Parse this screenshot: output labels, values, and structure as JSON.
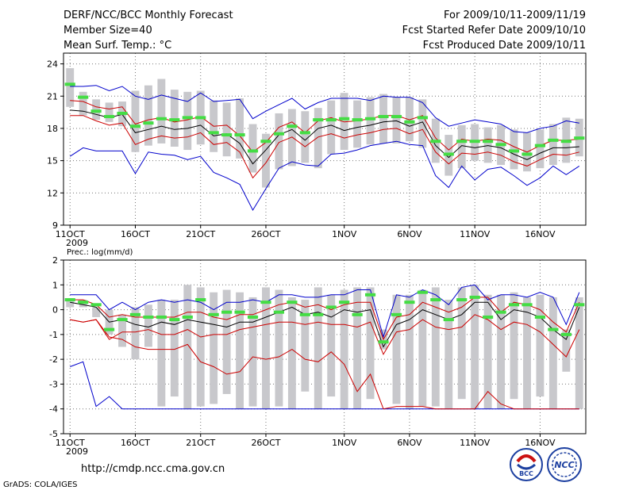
{
  "header": {
    "title": "DERF/NCC/BCC Monthly Forecast",
    "member_size": "Member Size=40",
    "variable": "Mean Surf. Temp.: °C",
    "period": "For 2009/10/11-2009/11/19",
    "fcst_started": "Fcst Started Refer Date 2009/10/10",
    "fcst_produced": "Fcst Produced Date 2009/10/11"
  },
  "footer": {
    "url": "http://cmdp.ncc.cma.gov.cn",
    "grads": "GrADS: COLA/IGES",
    "logo_bcc_text": "BCC",
    "logo_ncc_text": "NCC"
  },
  "colors": {
    "spread_bar": "#c8c8cc",
    "mean": "#000000",
    "inner": "#cc0000",
    "outer": "#0000cc",
    "obs": "#44dd44",
    "grid": "#777777"
  },
  "chart_data": [
    {
      "type": "line",
      "title": "Mean Surf. Temp.: °C",
      "year_label": "2009",
      "ylim": [
        9,
        25
      ],
      "yticks": [
        9,
        12,
        15,
        18,
        21,
        24
      ],
      "xlim": [
        -0.5,
        39.5
      ],
      "xticks": [
        {
          "x": 0,
          "label": "11OCT"
        },
        {
          "x": 5,
          "label": "16OCT"
        },
        {
          "x": 10,
          "label": "21OCT"
        },
        {
          "x": 15,
          "label": "26OCT"
        },
        {
          "x": 21,
          "label": "1NOV"
        },
        {
          "x": 26,
          "label": "6NOV"
        },
        {
          "x": 31,
          "label": "11NOV"
        },
        {
          "x": 36,
          "label": "16NOV"
        }
      ],
      "bar_low": [
        20.0,
        19.2,
        18.8,
        18.6,
        18.2,
        15.8,
        16.4,
        16.6,
        16.3,
        16.0,
        16.5,
        15.8,
        15.4,
        15.2,
        13.9,
        12.5,
        14.2,
        14.5,
        14.8,
        14.3,
        15.6,
        16.0,
        16.2,
        16.5,
        16.6,
        16.6,
        16.8,
        16.2,
        14.8,
        13.6,
        14.3,
        15.0,
        14.8,
        14.6,
        14.2,
        14.0,
        14.3,
        14.6,
        14.8,
        15.4
      ],
      "bar_high": [
        23.6,
        21.4,
        20.7,
        20.4,
        20.5,
        21.5,
        22.0,
        22.6,
        21.6,
        21.4,
        21.5,
        20.6,
        20.4,
        20.8,
        18.4,
        17.5,
        19.4,
        19.8,
        19.6,
        19.9,
        20.6,
        21.3,
        20.6,
        20.9,
        21.2,
        20.9,
        20.9,
        20.7,
        18.9,
        17.4,
        18.3,
        18.4,
        18.1,
        18.3,
        17.9,
        17.6,
        17.9,
        18.4,
        19.0,
        18.9
      ],
      "mean": [
        19.7,
        19.6,
        19.3,
        19.0,
        19.3,
        17.6,
        17.9,
        18.2,
        17.9,
        18.0,
        18.3,
        17.3,
        17.5,
        16.6,
        14.7,
        16.0,
        17.4,
        17.9,
        16.9,
        18.0,
        18.3,
        17.8,
        18.1,
        18.3,
        18.6,
        18.7,
        18.2,
        18.6,
        16.4,
        15.3,
        16.4,
        16.2,
        16.4,
        16.2,
        15.6,
        15.1,
        15.7,
        16.2,
        16.2,
        16.3
      ],
      "inner_upper": [
        20.6,
        20.5,
        20.0,
        19.8,
        20.0,
        18.4,
        18.8,
        19.0,
        18.6,
        18.8,
        19.1,
        18.2,
        18.3,
        17.3,
        15.8,
        16.7,
        18.1,
        18.6,
        17.6,
        18.7,
        19.0,
        18.6,
        18.7,
        18.9,
        19.2,
        19.2,
        18.8,
        19.2,
        17.1,
        16.0,
        17.0,
        16.8,
        17.0,
        16.9,
        16.3,
        15.8,
        16.4,
        16.9,
        16.9,
        17.0
      ],
      "inner_lower": [
        19.2,
        19.2,
        18.7,
        18.3,
        18.5,
        16.5,
        17.0,
        17.3,
        17.1,
        17.2,
        17.6,
        16.5,
        16.7,
        15.8,
        13.4,
        14.8,
        16.7,
        17.2,
        16.3,
        17.2,
        17.5,
        17.1,
        17.4,
        17.6,
        17.9,
        18.0,
        17.5,
        17.9,
        15.8,
        14.7,
        15.7,
        15.6,
        15.8,
        15.5,
        14.9,
        14.5,
        15.1,
        15.6,
        15.5,
        15.8
      ],
      "outer_upper": [
        21.9,
        21.9,
        22.0,
        21.5,
        21.9,
        21.0,
        20.7,
        21.1,
        20.8,
        20.5,
        21.3,
        20.5,
        20.6,
        20.7,
        18.9,
        19.6,
        20.2,
        20.8,
        19.8,
        20.4,
        20.8,
        20.8,
        20.8,
        20.6,
        21.0,
        20.9,
        20.9,
        20.4,
        19.0,
        18.2,
        18.5,
        18.8,
        18.6,
        18.4,
        17.7,
        17.6,
        18.0,
        18.2,
        18.7,
        18.5
      ],
      "outer_lower": [
        15.4,
        16.2,
        15.9,
        15.9,
        15.9,
        13.8,
        15.8,
        15.6,
        15.5,
        15.1,
        15.4,
        13.9,
        13.4,
        12.8,
        10.4,
        12.4,
        14.3,
        14.9,
        14.6,
        14.5,
        15.6,
        15.7,
        16.0,
        16.4,
        16.6,
        16.8,
        16.5,
        16.4,
        13.6,
        12.5,
        14.5,
        13.2,
        14.2,
        14.4,
        13.6,
        12.7,
        13.4,
        14.5,
        13.7,
        14.5
      ],
      "observed": [
        22.1,
        20.9,
        19.6,
        19.1,
        19.4,
        18.2,
        18.5,
        18.9,
        18.8,
        19.0,
        19.0,
        17.6,
        17.4,
        17.4,
        15.9,
        16.8,
        17.5,
        18.2,
        17.6,
        18.8,
        18.8,
        18.9,
        18.8,
        18.9,
        19.1,
        19.1,
        18.6,
        19.0,
        16.8,
        15.6,
        16.8,
        16.8,
        16.8,
        16.5,
        15.9,
        15.6,
        16.4,
        16.9,
        16.8,
        17.1
      ]
    },
    {
      "type": "line",
      "title": "Prec.: log(mm/d)",
      "year_label": "2009",
      "ylim": [
        -5,
        2
      ],
      "yticks": [
        -5,
        -4,
        -3,
        -2,
        -1,
        0,
        1,
        2
      ],
      "xlim": [
        -0.5,
        39.5
      ],
      "xticks": [
        {
          "x": 0,
          "label": "11OCT"
        },
        {
          "x": 5,
          "label": "16OCT"
        },
        {
          "x": 10,
          "label": "21OCT"
        },
        {
          "x": 15,
          "label": "26OCT"
        },
        {
          "x": 21,
          "label": "1NOV"
        },
        {
          "x": 26,
          "label": "6NOV"
        },
        {
          "x": 31,
          "label": "11NOV"
        },
        {
          "x": 36,
          "label": "16NOV"
        }
      ],
      "bar_low": [
        0.1,
        0.1,
        -0.3,
        -1.0,
        -1.5,
        -2.0,
        -1.5,
        -3.9,
        -3.5,
        -4.0,
        -3.9,
        -3.8,
        -3.4,
        -4.0,
        -3.9,
        -4.0,
        -3.9,
        -4.0,
        -3.3,
        -4.0,
        -3.5,
        -4.0,
        -4.0,
        -3.6,
        -1.6,
        -3.8,
        -4.0,
        -3.9,
        -3.9,
        -4.0,
        -3.6,
        -4.0,
        -4.0,
        -4.0,
        -3.6,
        -4.0,
        -3.5,
        -4.0,
        -2.5,
        -4.0
      ],
      "bar_high": [
        0.4,
        0.4,
        0.1,
        0.0,
        -0.2,
        0.1,
        0.2,
        0.4,
        0.4,
        1.0,
        0.9,
        0.7,
        0.8,
        0.7,
        0.5,
        0.9,
        0.8,
        0.5,
        0.4,
        0.9,
        0.6,
        0.8,
        0.9,
        0.9,
        -0.8,
        0.6,
        0.6,
        0.8,
        0.9,
        0.4,
        0.9,
        1.0,
        0.6,
        0.6,
        0.7,
        0.5,
        0.6,
        0.5,
        -0.8,
        0.5
      ],
      "mean": [
        0.3,
        0.2,
        0.1,
        -0.5,
        -0.4,
        -0.6,
        -0.7,
        -0.5,
        -0.6,
        -0.4,
        -0.5,
        -0.6,
        -0.7,
        -0.5,
        -0.5,
        -0.3,
        -0.1,
        0.1,
        -0.2,
        -0.1,
        -0.3,
        0.0,
        -0.1,
        0.0,
        -1.5,
        -0.6,
        -0.4,
        0.0,
        -0.2,
        -0.4,
        -0.2,
        0.3,
        0.3,
        -0.4,
        0.0,
        -0.1,
        -0.3,
        -0.8,
        -1.2,
        0.1
      ],
      "inner_upper": [
        0.4,
        0.4,
        0.2,
        -0.3,
        -0.2,
        -0.3,
        -0.3,
        -0.3,
        -0.3,
        -0.1,
        -0.1,
        -0.3,
        -0.4,
        -0.2,
        -0.2,
        0.0,
        0.2,
        0.3,
        0.1,
        0.2,
        0.0,
        0.2,
        0.3,
        0.3,
        -1.2,
        -0.3,
        -0.2,
        0.3,
        0.1,
        -0.1,
        0.1,
        0.5,
        0.5,
        -0.1,
        0.3,
        0.2,
        0.0,
        -0.5,
        -0.9,
        0.3
      ],
      "inner_lower": [
        -0.4,
        -0.5,
        -0.4,
        -1.1,
        -1.2,
        -1.5,
        -1.6,
        -1.6,
        -1.6,
        -1.4,
        -2.1,
        -2.3,
        -2.6,
        -2.5,
        -1.9,
        -2.0,
        -1.9,
        -1.6,
        -2.0,
        -2.1,
        -1.7,
        -2.2,
        -3.3,
        -2.6,
        -4.0,
        -3.9,
        -3.9,
        -3.9,
        -4.0,
        -4.0,
        -4.0,
        -4.0,
        -3.3,
        -3.8,
        -4.0,
        -4.0,
        -4.0,
        -4.0,
        -4.0,
        -4.0
      ],
      "inner_lower_red2": [
        -0.4,
        -0.5,
        -0.4,
        -1.2,
        -0.9,
        -0.9,
        -0.8,
        -1.0,
        -1.0,
        -0.8,
        -1.1,
        -1.0,
        -1.0,
        -0.8,
        -0.7,
        -0.6,
        -0.5,
        -0.5,
        -0.6,
        -0.5,
        -0.6,
        -0.6,
        -0.7,
        -0.5,
        -1.8,
        -0.9,
        -0.8,
        -0.4,
        -0.7,
        -0.8,
        -0.7,
        -0.2,
        -0.4,
        -0.8,
        -0.5,
        -0.6,
        -0.9,
        -1.4,
        -1.9,
        -0.8
      ],
      "outer_upper": [
        0.6,
        0.6,
        0.6,
        0.0,
        0.3,
        0.0,
        0.3,
        0.4,
        0.3,
        0.4,
        0.3,
        0.0,
        0.3,
        0.3,
        0.4,
        0.3,
        0.6,
        0.6,
        0.5,
        0.5,
        0.6,
        0.6,
        0.8,
        0.8,
        -1.1,
        0.6,
        0.5,
        0.8,
        0.6,
        0.2,
        0.9,
        1.0,
        0.4,
        0.6,
        0.6,
        0.5,
        0.7,
        0.5,
        -0.6,
        0.7
      ],
      "outer_lower": [
        -2.3,
        -2.1,
        -3.9,
        -3.5,
        -4.0,
        -4.0,
        -4.0,
        -4.0,
        -4.0,
        -4.0,
        -4.0,
        -4.0,
        -4.0,
        -4.0,
        -4.0,
        -4.0,
        -4.0,
        -4.0,
        -4.0,
        -4.0,
        -4.0,
        -4.0,
        -4.0,
        -4.0,
        -4.0,
        -4.0,
        -4.0,
        -4.0,
        -4.0,
        -4.0,
        -4.0,
        -4.0,
        -4.0,
        -4.0,
        -4.0,
        -4.0,
        -4.0,
        -4.0,
        -4.0,
        -4.0
      ],
      "observed": [
        0.4,
        0.3,
        0.2,
        -0.8,
        -0.4,
        -0.2,
        -0.3,
        -0.3,
        -0.4,
        -0.3,
        0.4,
        -0.2,
        -0.1,
        -0.1,
        -0.3,
        0.3,
        -0.1,
        0.3,
        -0.2,
        -0.2,
        0.1,
        0.3,
        -0.2,
        0.6,
        -1.3,
        -0.2,
        0.3,
        0.7,
        0.4,
        -0.4,
        0.4,
        0.5,
        -0.3,
        -0.1,
        0.2,
        0.2,
        -0.3,
        -0.8,
        -1.0,
        0.2
      ]
    }
  ]
}
